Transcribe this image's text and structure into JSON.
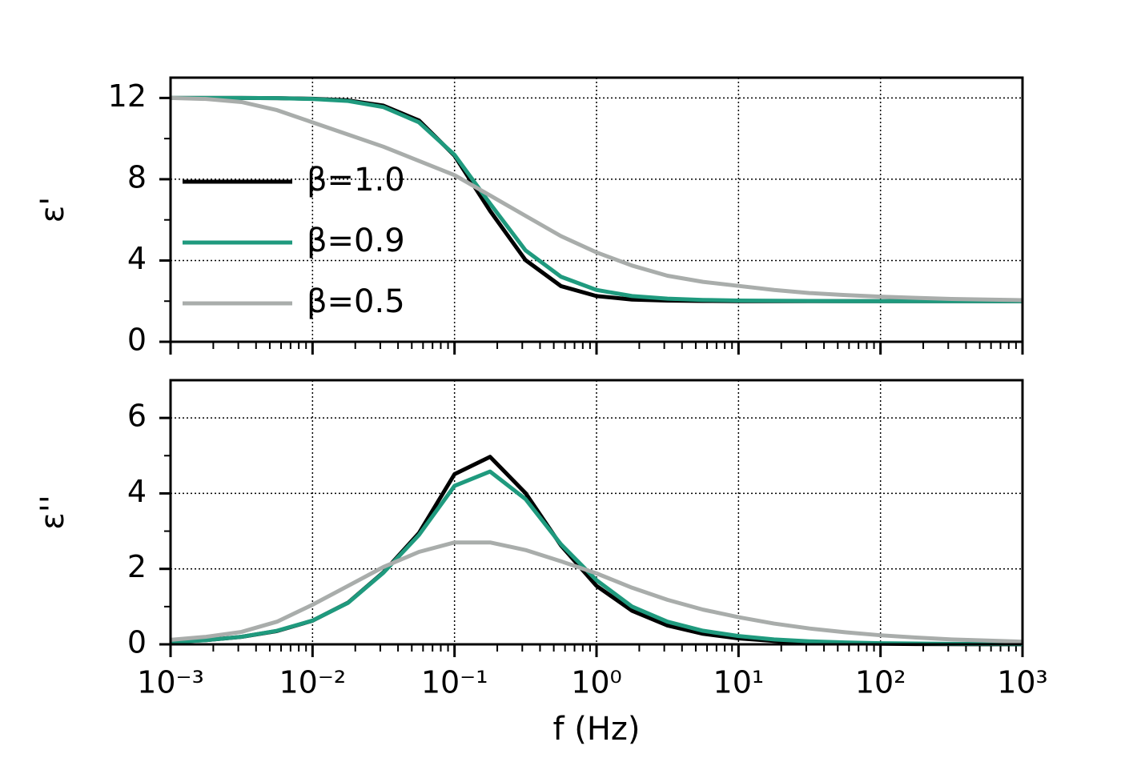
{
  "chart_data": [
    {
      "type": "line",
      "ylabel": "ε'",
      "xscale": "log",
      "grid": true,
      "legend": "center left",
      "xlim": [
        0.001,
        1000
      ],
      "xticks": [
        0.001,
        0.01,
        0.1,
        1,
        10,
        100,
        1000
      ],
      "ylim": [
        0,
        13
      ],
      "yticks": [
        0,
        4,
        8,
        12
      ],
      "x": [
        0.001,
        0.00178,
        0.00316,
        0.00562,
        0.01,
        0.0178,
        0.0316,
        0.0562,
        0.1,
        0.178,
        0.316,
        0.562,
        1,
        1.78,
        3.16,
        5.62,
        10,
        17.8,
        31.6,
        56.2,
        100,
        178,
        316,
        562,
        1000
      ],
      "series": [
        {
          "name": "β=1.0",
          "color": "#000000",
          "values": [
            12,
            12,
            12,
            11.99,
            11.96,
            11.88,
            11.62,
            10.89,
            9.16,
            6.44,
            4.02,
            2.74,
            2.25,
            2.08,
            2.03,
            2.01,
            2.0,
            2.0,
            2.0,
            2.0,
            2.0,
            2.0,
            2.0,
            2.0,
            2.0
          ]
        },
        {
          "name": "β=0.9",
          "color": "#1f9a7e",
          "values": [
            12,
            12,
            12,
            11.99,
            11.95,
            11.85,
            11.55,
            10.8,
            9.2,
            6.8,
            4.5,
            3.2,
            2.55,
            2.25,
            2.12,
            2.06,
            2.03,
            2.02,
            2.01,
            2.0,
            2.0,
            2.0,
            2.0,
            2.0,
            2.0
          ]
        },
        {
          "name": "β=0.5",
          "color": "#a9adab",
          "values": [
            12.0,
            11.95,
            11.8,
            11.4,
            10.8,
            10.2,
            9.6,
            8.9,
            8.2,
            7.2,
            6.2,
            5.2,
            4.4,
            3.75,
            3.25,
            2.95,
            2.75,
            2.55,
            2.4,
            2.3,
            2.22,
            2.16,
            2.11,
            2.08,
            2.05
          ]
        }
      ]
    },
    {
      "type": "line",
      "ylabel": "ε''",
      "xlabel": "f (Hz)",
      "xscale": "log",
      "grid": true,
      "xlim": [
        0.001,
        1000
      ],
      "xticks": [
        {
          "value": 0.001,
          "label": "10⁻³"
        },
        {
          "value": 0.01,
          "label": "10⁻²"
        },
        {
          "value": 0.1,
          "label": "10⁻¹"
        },
        {
          "value": 1,
          "label": "10⁰"
        },
        {
          "value": 10,
          "label": "10¹"
        },
        {
          "value": 100,
          "label": "10²"
        },
        {
          "value": 1000,
          "label": "10³"
        }
      ],
      "ylim": [
        0,
        7
      ],
      "yticks": [
        0,
        2,
        4,
        6
      ],
      "x": [
        0.001,
        0.00178,
        0.00316,
        0.00562,
        0.01,
        0.0178,
        0.0316,
        0.0562,
        0.1,
        0.178,
        0.316,
        0.562,
        1,
        1.78,
        3.16,
        5.62,
        10,
        17.8,
        31.6,
        56.2,
        100,
        178,
        316,
        562,
        1000
      ],
      "series": [
        {
          "color": "#000000",
          "values": [
            0.063,
            0.112,
            0.199,
            0.353,
            0.627,
            1.106,
            1.91,
            2.95,
            4.51,
            4.97,
            4.01,
            2.62,
            1.55,
            0.89,
            0.5,
            0.28,
            0.159,
            0.089,
            0.05,
            0.028,
            0.016,
            0.009,
            0.005,
            0.003,
            0.0016
          ]
        },
        {
          "color": "#1f9a7e",
          "values": [
            0.06,
            0.11,
            0.2,
            0.36,
            0.63,
            1.1,
            1.9,
            2.9,
            4.2,
            4.58,
            3.85,
            2.65,
            1.7,
            1.0,
            0.6,
            0.36,
            0.22,
            0.13,
            0.08,
            0.05,
            0.03,
            0.02,
            0.012,
            0.007,
            0.004
          ]
        },
        {
          "color": "#a9adab",
          "values": [
            0.12,
            0.2,
            0.33,
            0.6,
            1.05,
            1.55,
            2.05,
            2.45,
            2.7,
            2.7,
            2.5,
            2.2,
            1.88,
            1.5,
            1.18,
            0.92,
            0.72,
            0.55,
            0.42,
            0.32,
            0.24,
            0.18,
            0.13,
            0.1,
            0.07
          ]
        }
      ]
    }
  ]
}
